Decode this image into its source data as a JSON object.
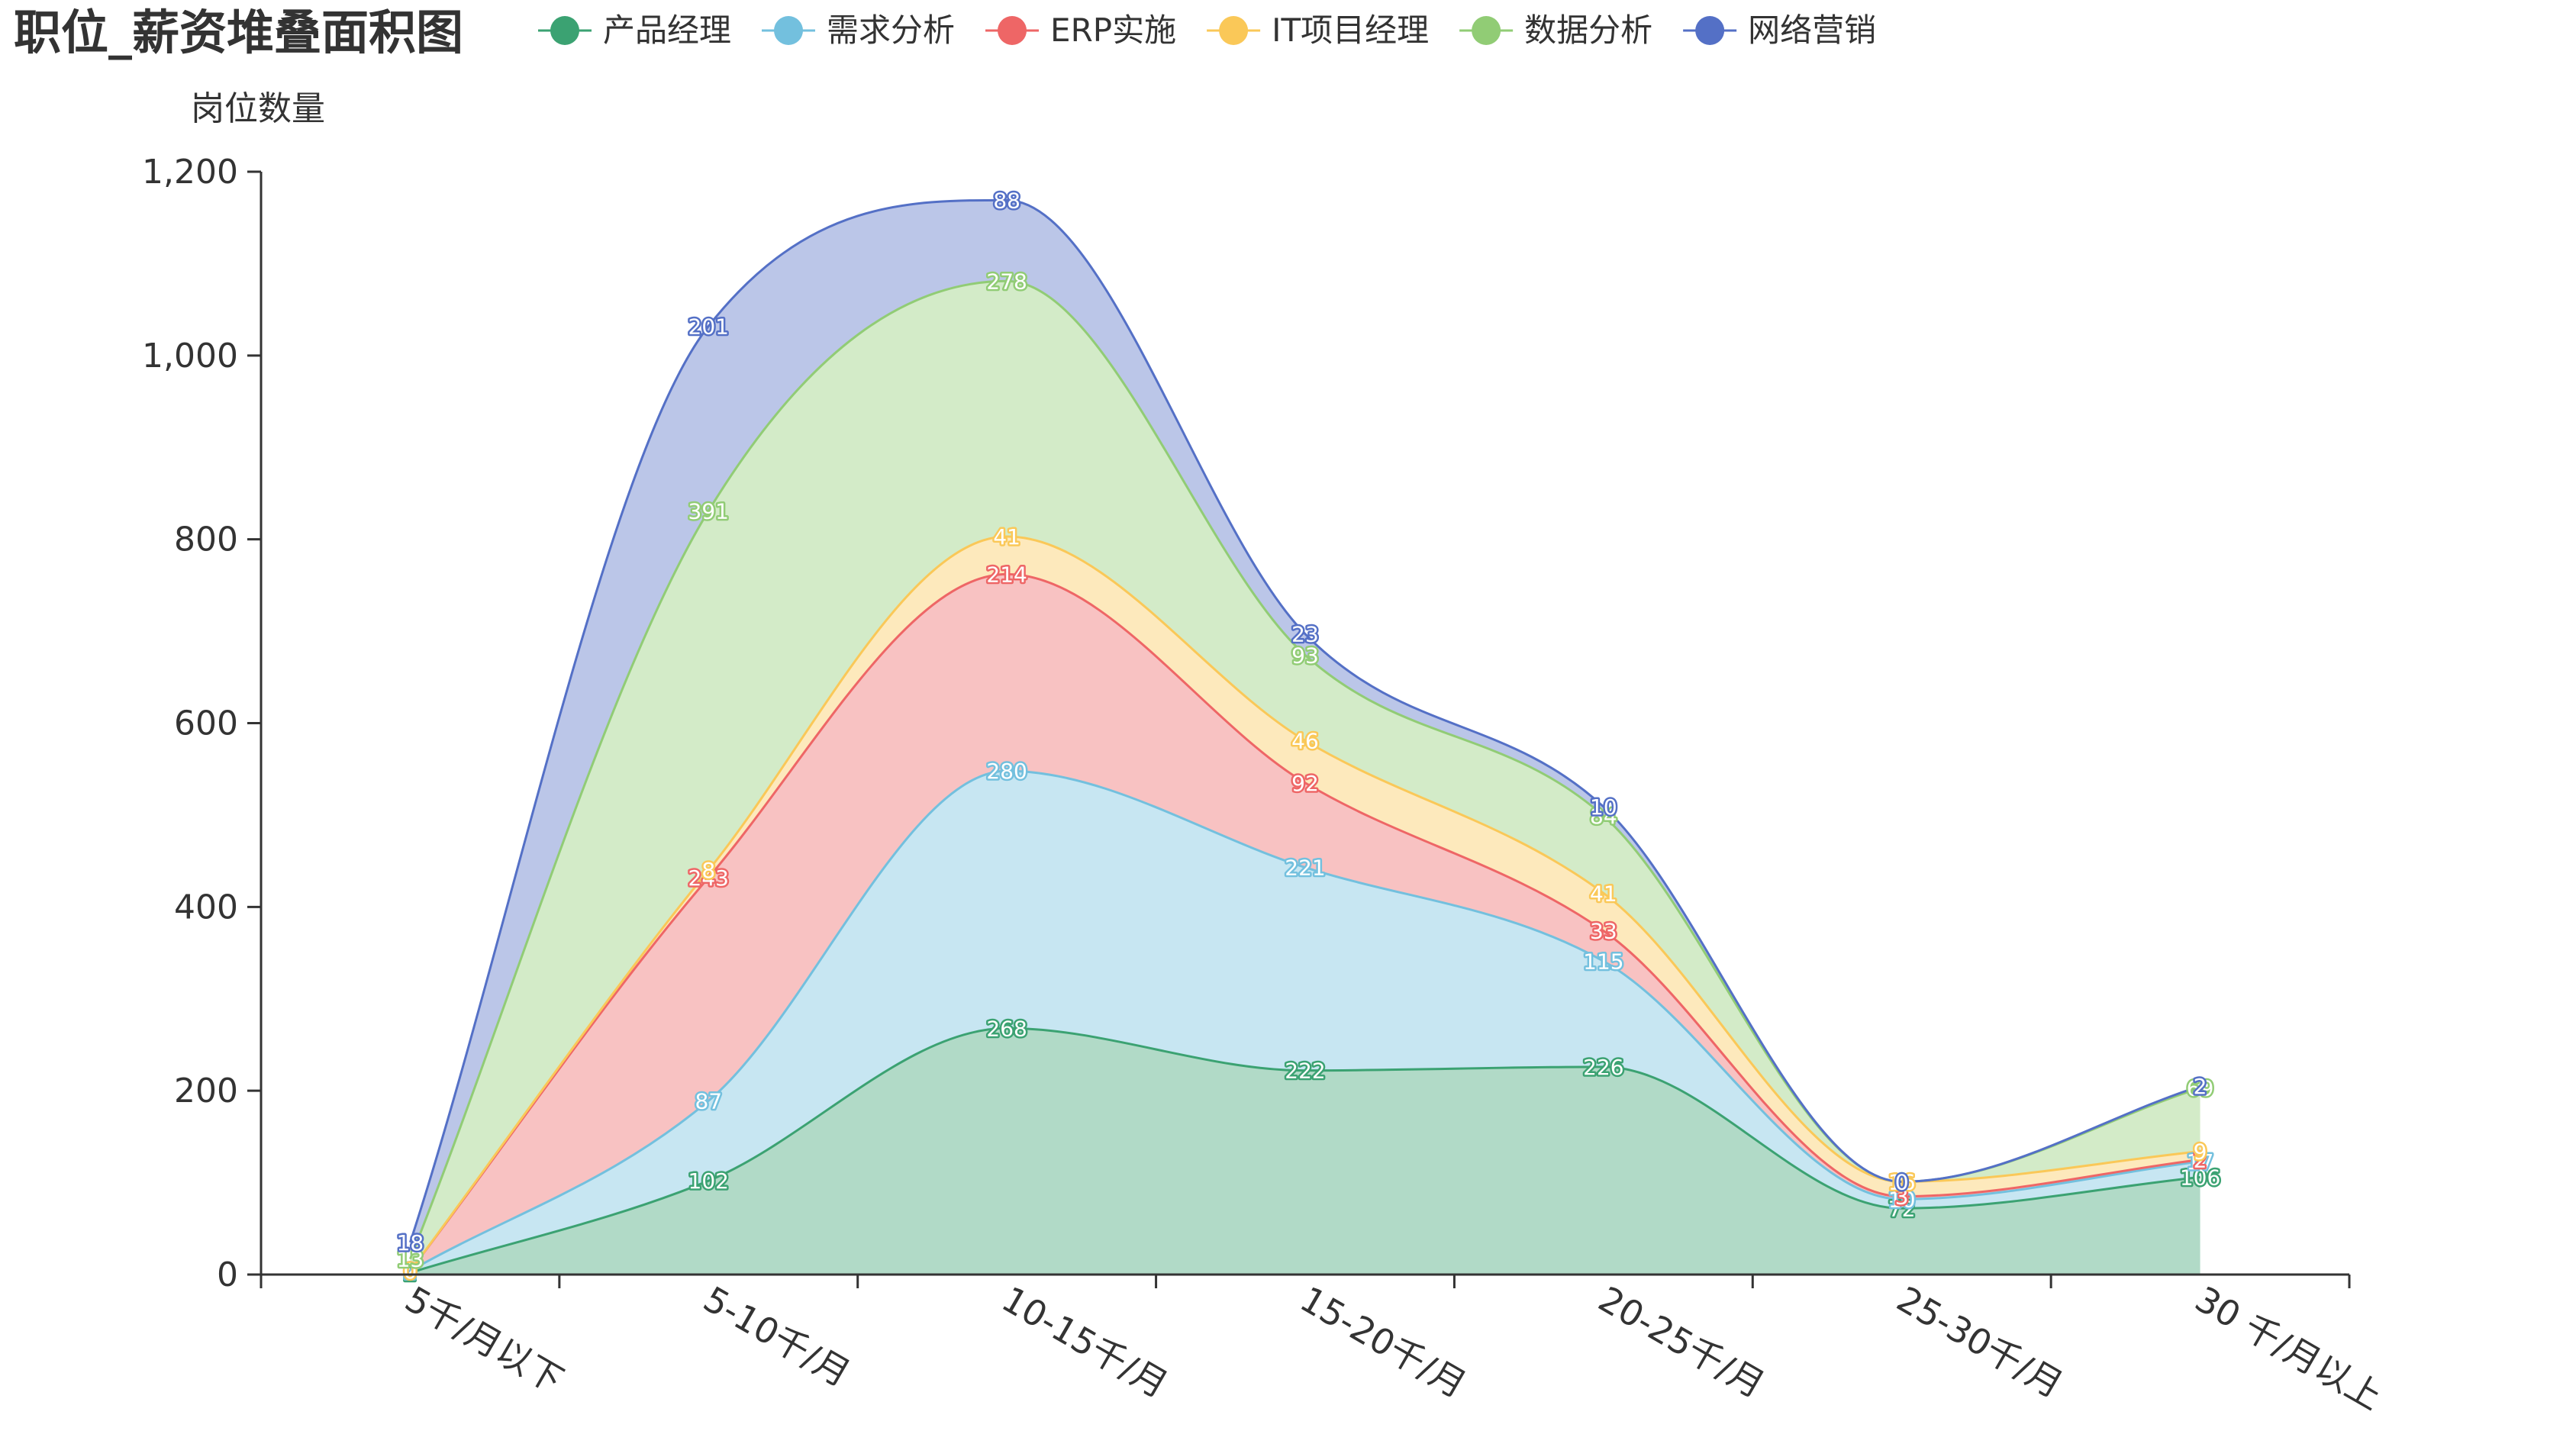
{
  "chart_data": {
    "type": "area",
    "stacked": true,
    "smooth": true,
    "title": "职位_薪资堆叠面积图",
    "ylabel": "岗位数量",
    "xlabel": "",
    "ylim": [
      0,
      1200
    ],
    "yticks": [
      0,
      200,
      400,
      600,
      800,
      1000,
      1200
    ],
    "ytick_labels": [
      "0",
      "200",
      "400",
      "600",
      "800",
      "1,000",
      "1,200"
    ],
    "categories": [
      "5千/月以下",
      "5-10千/月",
      "10-15千/月",
      "15-20千/月",
      "20-25千/月",
      "25-30千/月",
      "30 千/月以上"
    ],
    "legend_position": "top",
    "series": [
      {
        "name": "产品经理",
        "color": "#3ba272",
        "values": [
          2,
          102,
          268,
          222,
          226,
          72,
          106
        ]
      },
      {
        "name": "需求分析",
        "color": "#73c0de",
        "values": [
          2,
          87,
          280,
          221,
          115,
          10,
          17
        ]
      },
      {
        "name": "ERP实施",
        "color": "#ee6666",
        "values": [
          0,
          243,
          214,
          92,
          33,
          3,
          2
        ]
      },
      {
        "name": "IT项目经理",
        "color": "#fac858",
        "values": [
          0,
          8,
          41,
          46,
          41,
          16,
          9
        ]
      },
      {
        "name": "数据分析",
        "color": "#91cc75",
        "values": [
          13,
          391,
          278,
          93,
          84,
          0,
          69
        ]
      },
      {
        "name": "网络营销",
        "color": "#5470c6",
        "values": [
          18,
          201,
          88,
          23,
          10,
          0,
          2
        ]
      }
    ]
  }
}
